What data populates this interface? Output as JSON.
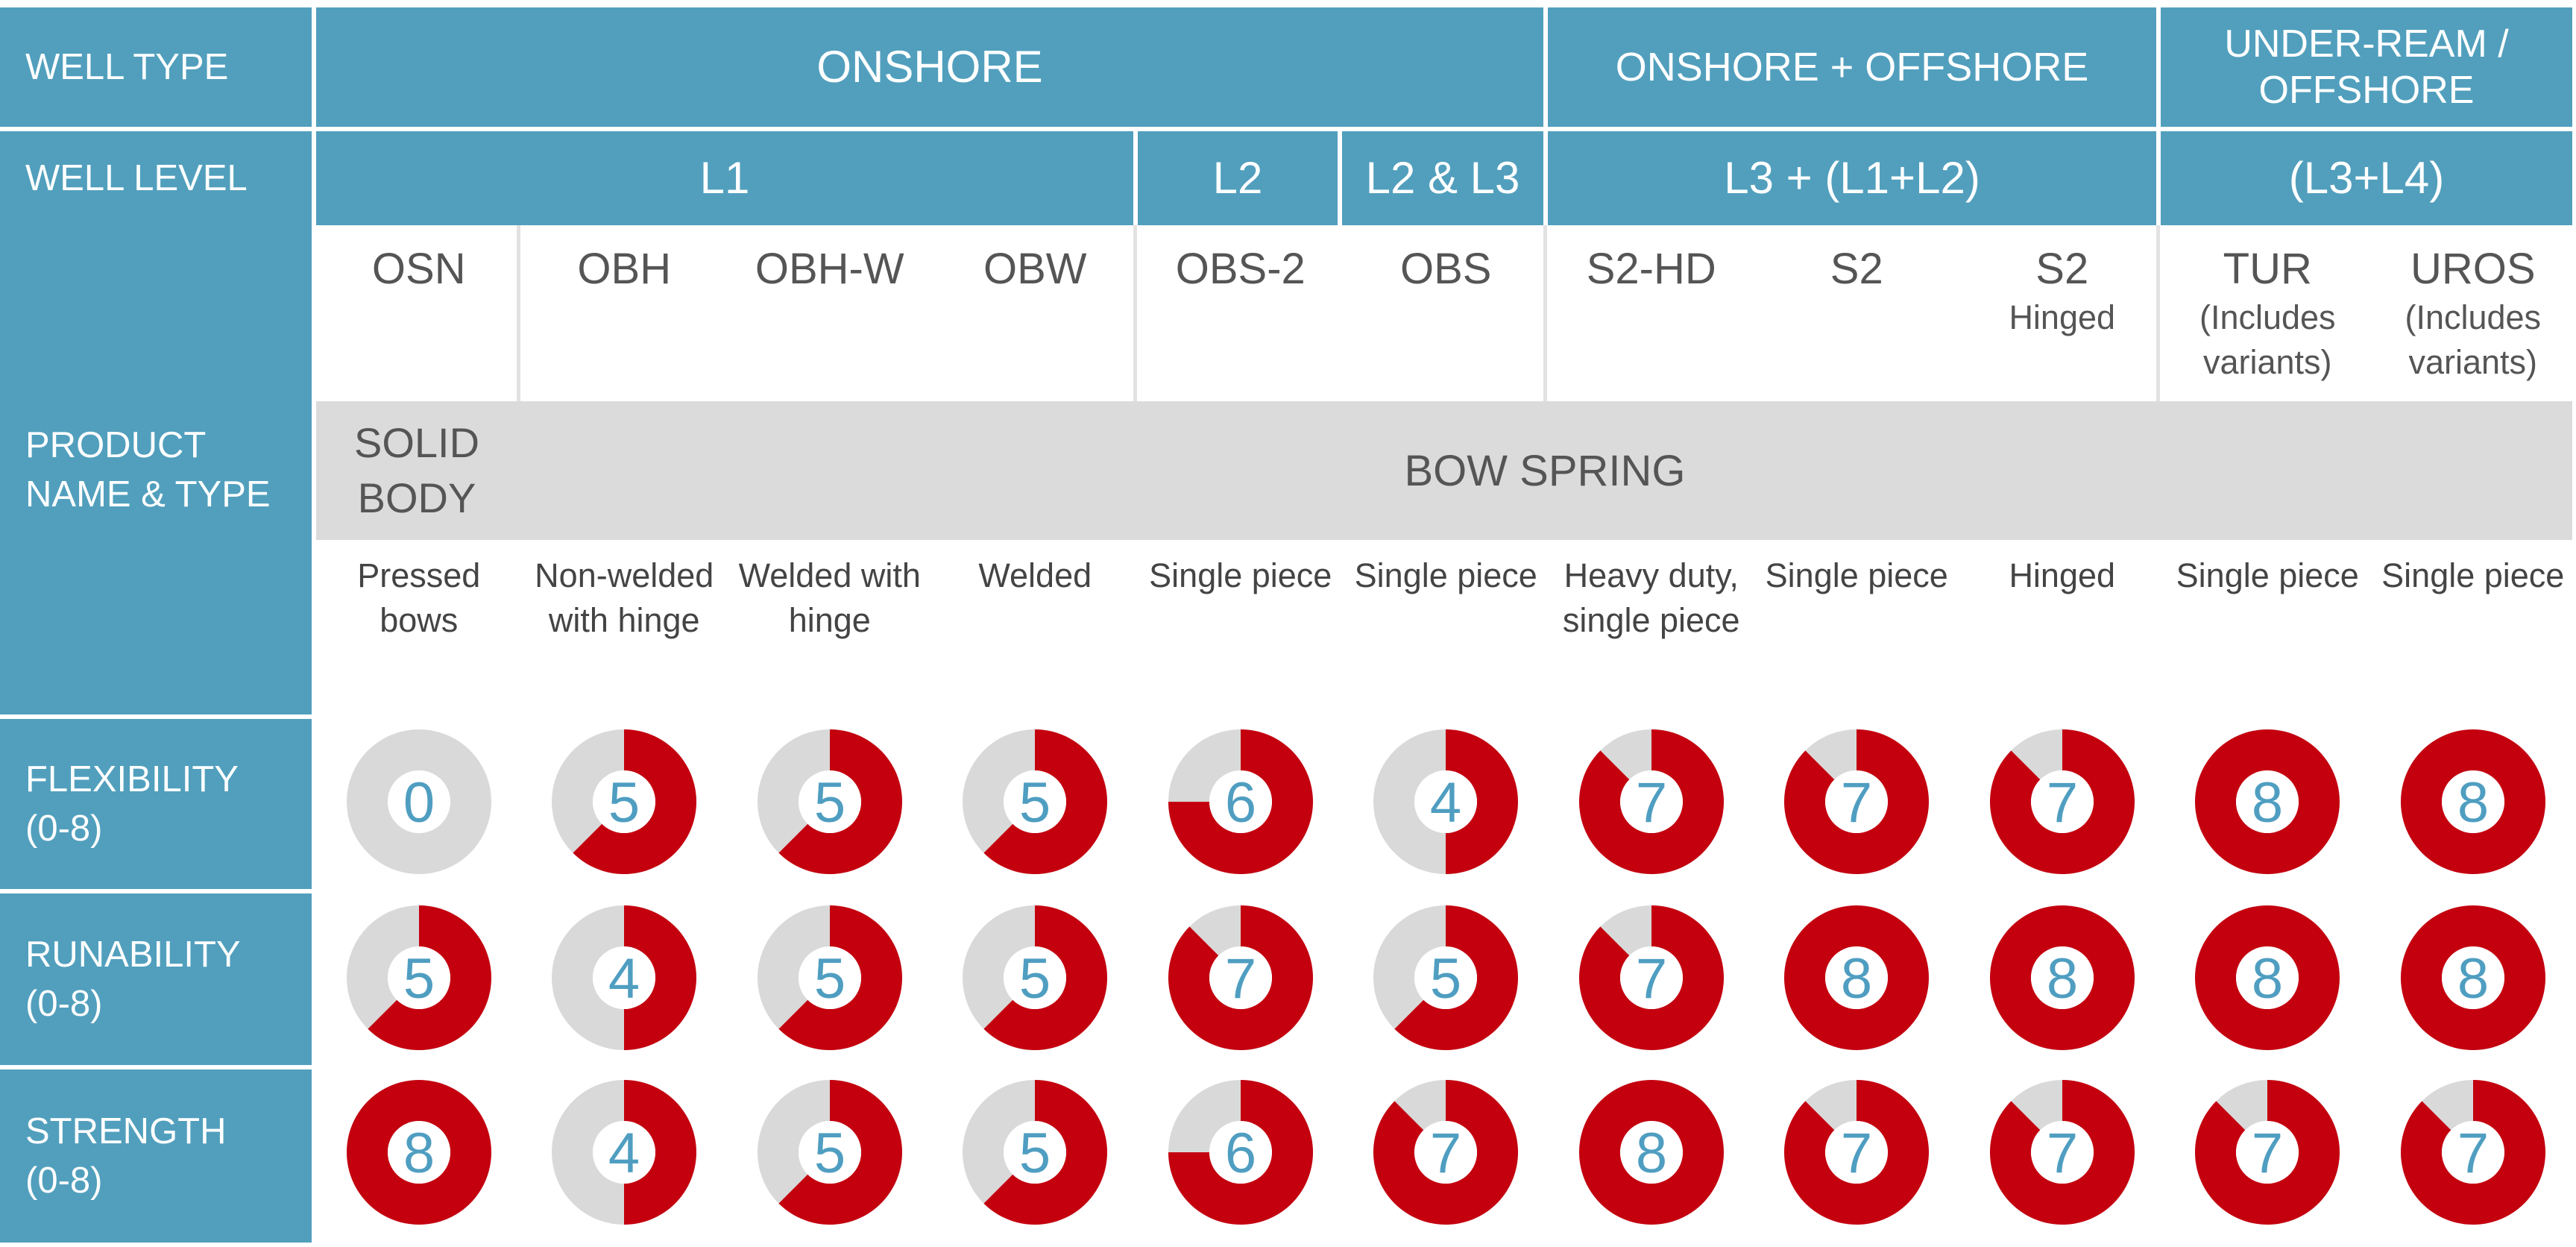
{
  "row_labels": {
    "well_type": "WELL TYPE",
    "well_level": "WELL LEVEL",
    "product_name_type": [
      "PRODUCT",
      "NAME & TYPE"
    ],
    "flexibility": [
      "FLEXIBILITY",
      "(0-8)"
    ],
    "runability": [
      "RUNABILITY",
      "(0-8)"
    ],
    "strength": [
      "STRENGTH",
      "(0-8)"
    ]
  },
  "well_types": [
    {
      "label": [
        "ONSHORE"
      ]
    },
    {
      "label": [
        "ONSHORE + OFFSHORE"
      ]
    },
    {
      "label": [
        "UNDER-REAM /",
        "OFFSHORE"
      ]
    }
  ],
  "well_levels": [
    {
      "label": "L1"
    },
    {
      "label": "L2"
    },
    {
      "label": "L2 & L3"
    },
    {
      "label": "L3 + (L1+L2)"
    },
    {
      "label": "(L3+L4)"
    }
  ],
  "product_types": [
    {
      "label": [
        "SOLID",
        "BODY"
      ]
    },
    {
      "label": [
        "BOW SPRING"
      ]
    }
  ],
  "products": [
    {
      "code": "OSN",
      "extra": [],
      "desc": [
        "Pressed",
        "bows"
      ],
      "flexibility": 0,
      "runability": 5,
      "strength": 8
    },
    {
      "code": "OBH",
      "extra": [],
      "desc": [
        "Non-welded",
        "with hinge"
      ],
      "flexibility": 5,
      "runability": 4,
      "strength": 4
    },
    {
      "code": "OBH-W",
      "extra": [],
      "desc": [
        "Welded with",
        "hinge"
      ],
      "flexibility": 5,
      "runability": 5,
      "strength": 5
    },
    {
      "code": "OBW",
      "extra": [],
      "desc": [
        "Welded"
      ],
      "flexibility": 5,
      "runability": 5,
      "strength": 5
    },
    {
      "code": "OBS-2",
      "extra": [],
      "desc": [
        "Single piece"
      ],
      "flexibility": 6,
      "runability": 7,
      "strength": 6
    },
    {
      "code": "OBS",
      "extra": [],
      "desc": [
        "Single piece"
      ],
      "flexibility": 4,
      "runability": 5,
      "strength": 7
    },
    {
      "code": "S2-HD",
      "extra": [],
      "desc": [
        "Heavy duty,",
        "single piece"
      ],
      "flexibility": 7,
      "runability": 7,
      "strength": 8
    },
    {
      "code": "S2",
      "extra": [],
      "desc": [
        "Single piece"
      ],
      "flexibility": 7,
      "runability": 8,
      "strength": 7
    },
    {
      "code": "S2",
      "extra": [
        "Hinged"
      ],
      "desc": [
        "Hinged"
      ],
      "flexibility": 7,
      "runability": 8,
      "strength": 7
    },
    {
      "code": "TUR",
      "extra": [
        "(Includes",
        "variants)"
      ],
      "desc": [
        "Single piece"
      ],
      "flexibility": 8,
      "runability": 8,
      "strength": 7
    },
    {
      "code": "UROS",
      "extra": [
        "(Includes",
        "variants)"
      ],
      "desc": [
        "Single piece"
      ],
      "flexibility": 8,
      "runability": 8,
      "strength": 7
    }
  ],
  "rating_max": 8,
  "colors": {
    "header_blue": "#519fbd",
    "band_gray": "#dbdbdb",
    "filled_red": "#c4000f",
    "empty_gray": "#d9d9d9",
    "number_blue": "#4f9ec1",
    "text_gray": "#555555"
  }
}
